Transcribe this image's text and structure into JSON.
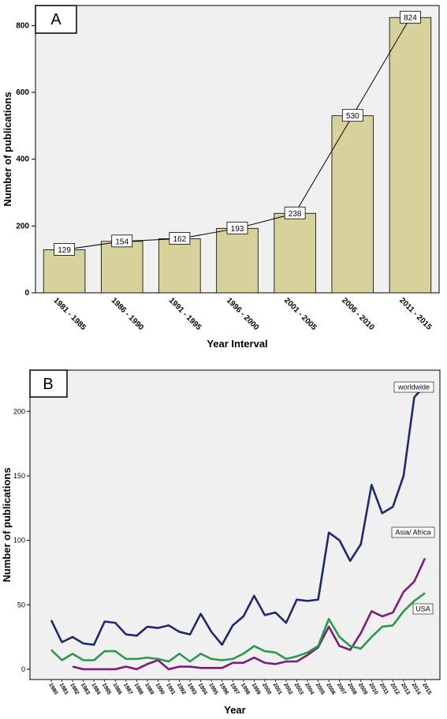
{
  "chart_data": [
    {
      "type": "bar",
      "panel_label": "A",
      "categories": [
        "1981 - 1985",
        "1986 - 1990",
        "1991 - 1995",
        "1996 - 2000",
        "2001 - 2005",
        "2006 - 2010",
        "2011 - 2015"
      ],
      "values": [
        129,
        154,
        162,
        193,
        238,
        530,
        824
      ],
      "data_labels": [
        "129",
        "154",
        "162",
        "193",
        "238",
        "530",
        "824"
      ],
      "xlabel": "Year Interval",
      "ylabel": "Number of publications",
      "ylim": [
        0,
        860
      ],
      "yticks": [
        0,
        200,
        400,
        600,
        800
      ],
      "bar_color": "#d7d19b",
      "line_overlay": true,
      "grid": false
    },
    {
      "type": "line",
      "panel_label": "B",
      "x": [
        "1980",
        "1981",
        "1982",
        "1983",
        "1984",
        "1985",
        "1986",
        "1987",
        "1988",
        "1989",
        "1990",
        "1991",
        "1992",
        "1993",
        "1994",
        "1995",
        "1996",
        "1997",
        "1998",
        "1999",
        "2000",
        "2001",
        "2002",
        "2003",
        "2004",
        "2005",
        "2006",
        "2007",
        "2008",
        "2009",
        "2010",
        "2011",
        "2012",
        "2013",
        "2014",
        "2015"
      ],
      "xlabel": "Year",
      "ylabel": "Number of publications",
      "ylim": [
        -8,
        232
      ],
      "yticks": [
        0,
        50,
        100,
        150,
        200
      ],
      "grid": false,
      "series": [
        {
          "name": "worldwide",
          "color": "#1f2a6b",
          "values": [
            38,
            21,
            25,
            20,
            19,
            37,
            36,
            27,
            26,
            33,
            32,
            34,
            29,
            27,
            43,
            29,
            19,
            34,
            41,
            57,
            42,
            44,
            36,
            54,
            53,
            54,
            106,
            100,
            84,
            97,
            143,
            121,
            126,
            150,
            211,
            220
          ]
        },
        {
          "name": "Asia/ Africa",
          "color": "#7a1f75",
          "values": [
            null,
            null,
            2,
            0,
            0,
            0,
            0,
            2,
            0,
            4,
            7,
            0,
            2,
            2,
            1,
            1,
            1,
            5,
            5,
            9,
            5,
            4,
            6,
            6,
            11,
            17,
            33,
            18,
            15,
            28,
            45,
            41,
            44,
            60,
            68,
            86
          ]
        },
        {
          "name": "USA",
          "color": "#2a9a4a",
          "values": [
            15,
            7,
            12,
            7,
            7,
            14,
            14,
            8,
            8,
            9,
            8,
            6,
            12,
            6,
            12,
            8,
            7,
            8,
            12,
            18,
            14,
            13,
            8,
            10,
            13,
            18,
            39,
            25,
            18,
            16,
            25,
            33,
            34,
            45,
            53,
            59
          ]
        }
      ]
    }
  ]
}
